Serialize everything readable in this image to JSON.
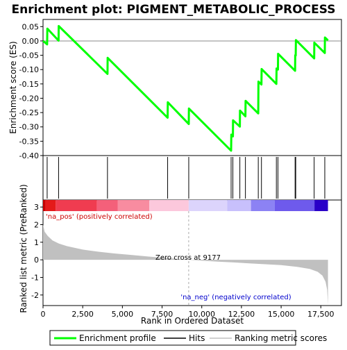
{
  "chart_data": {
    "type": "line",
    "title": "Enrichment plot: PIGMENT_METABOLIC_PROCESS",
    "top_panel": {
      "ylabel": "Enrichment score (ES)",
      "ylim": [
        -0.4,
        0.075
      ],
      "yticks": [
        0.05,
        0.0,
        -0.05,
        -0.1,
        -0.15,
        -0.2,
        -0.25,
        -0.3,
        -0.35,
        -0.4
      ],
      "ytick_labels": [
        "0.05",
        "0.00",
        "-0.05",
        "-0.10",
        "-0.15",
        "-0.20",
        "-0.25",
        "-0.30",
        "-0.35",
        "-0.40"
      ],
      "series": [
        {
          "name": "Enrichment profile",
          "color": "#00ff00",
          "points": [
            [
              0,
              0.0
            ],
            [
              260,
              -0.012
            ],
            [
              270,
              0.043
            ],
            [
              980,
              0.001
            ],
            [
              990,
              0.052
            ],
            [
              4060,
              -0.115
            ],
            [
              4070,
              -0.059
            ],
            [
              7850,
              -0.268
            ],
            [
              7860,
              -0.214
            ],
            [
              9180,
              -0.29
            ],
            [
              9190,
              -0.236
            ],
            [
              11850,
              -0.383
            ],
            [
              11860,
              -0.327
            ],
            [
              11960,
              -0.333
            ],
            [
              11970,
              -0.277
            ],
            [
              12400,
              -0.299
            ],
            [
              12410,
              -0.243
            ],
            [
              12750,
              -0.263
            ],
            [
              12760,
              -0.209
            ],
            [
              13560,
              -0.253
            ],
            [
              13570,
              -0.142
            ],
            [
              13760,
              -0.152
            ],
            [
              13770,
              -0.098
            ],
            [
              14700,
              -0.15
            ],
            [
              14710,
              -0.096
            ],
            [
              14800,
              -0.1
            ],
            [
              14810,
              -0.045
            ],
            [
              15880,
              -0.104
            ],
            [
              15890,
              -0.05
            ],
            [
              15920,
              -0.051
            ],
            [
              15930,
              0.003
            ],
            [
              17080,
              -0.061
            ],
            [
              17090,
              -0.006
            ],
            [
              17750,
              -0.042
            ],
            [
              17760,
              0.012
            ],
            [
              17950,
              0.002
            ]
          ]
        }
      ]
    },
    "hits": {
      "name": "Hits",
      "color": "#000000",
      "positions": [
        260,
        980,
        4060,
        7850,
        9180,
        11850,
        11960,
        12400,
        12750,
        13560,
        13760,
        14700,
        14800,
        15880,
        15920,
        17080,
        17750
      ]
    },
    "color_bar": {
      "segments": [
        {
          "to": 150,
          "color": "#c80000"
        },
        {
          "to": 800,
          "color": "#e41a1a"
        },
        {
          "to": 3400,
          "color": "#f03c50"
        },
        {
          "to": 4700,
          "color": "#f4607a"
        },
        {
          "to": 6700,
          "color": "#f88ca0"
        },
        {
          "to": 9177,
          "color": "#fcc8dc"
        },
        {
          "to": 11600,
          "color": "#dcd4fc"
        },
        {
          "to": 13100,
          "color": "#c8c0fc"
        },
        {
          "to": 14600,
          "color": "#8c82f4"
        },
        {
          "to": 17100,
          "color": "#6e5aec"
        },
        {
          "to": 17950,
          "color": "#2a00c8"
        }
      ]
    },
    "bottom_panel": {
      "ylabel": "Ranked list metric (PreRanked)",
      "xlabel": "Rank in Ordered Dataset",
      "xlim": [
        0,
        18800
      ],
      "ylim": [
        -2.6,
        3.4
      ],
      "xticks": [
        0,
        2500,
        5000,
        7500,
        10000,
        12500,
        15000,
        17500
      ],
      "xtick_labels": [
        "0",
        "2,500",
        "5,000",
        "7,500",
        "10,000",
        "12,500",
        "15,000",
        "17,500"
      ],
      "yticks": [
        3,
        2,
        1,
        0,
        -1,
        -2
      ],
      "ytick_labels": [
        "3",
        "2",
        "1",
        "0",
        "-1",
        "-2"
      ],
      "series": [
        {
          "name": "Ranking metric scores",
          "color": "#c0c0c0",
          "points": [
            [
              0,
              2.0
            ],
            [
              100,
              1.6
            ],
            [
              300,
              1.35
            ],
            [
              600,
              1.1
            ],
            [
              1000,
              0.92
            ],
            [
              1500,
              0.78
            ],
            [
              2500,
              0.58
            ],
            [
              3500,
              0.46
            ],
            [
              4500,
              0.36
            ],
            [
              5500,
              0.28
            ],
            [
              6500,
              0.2
            ],
            [
              7500,
              0.12
            ],
            [
              8500,
              0.05
            ],
            [
              9177,
              0.0
            ],
            [
              10000,
              -0.05
            ],
            [
              11000,
              -0.1
            ],
            [
              12000,
              -0.15
            ],
            [
              13000,
              -0.2
            ],
            [
              14000,
              -0.25
            ],
            [
              15000,
              -0.3
            ],
            [
              16000,
              -0.4
            ],
            [
              16800,
              -0.52
            ],
            [
              17300,
              -0.68
            ],
            [
              17600,
              -0.9
            ],
            [
              17800,
              -1.25
            ],
            [
              17900,
              -1.7
            ],
            [
              17950,
              -2.55
            ]
          ]
        }
      ],
      "annotations": {
        "pos_label": "'na_pos' (positively correlated)",
        "neg_label": "'na_neg' (negatively correlated)",
        "zero_cross": "Zero cross at 9177",
        "zero_cross_x": 9177
      },
      "colors": {
        "pos": "#cc0000",
        "neg": "#0000cc"
      }
    },
    "legend": {
      "placement": "bottom",
      "items": [
        {
          "label": "Enrichment profile",
          "color": "#00ff00",
          "kind": "thick-line"
        },
        {
          "label": "Hits",
          "color": "#000000",
          "kind": "line"
        },
        {
          "label": "Ranking metric scores",
          "color": "#c0c0c0",
          "kind": "line"
        }
      ]
    }
  }
}
